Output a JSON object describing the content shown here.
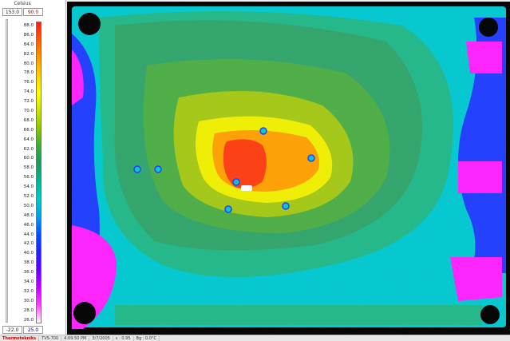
{
  "scale": {
    "unit": "Celsius",
    "range_max_left": "153.0",
    "range_max_right": "90.0",
    "range_min_left": "-22.0",
    "range_min_right": "25.0",
    "ticks": [
      "88.0",
      "86.0",
      "84.0",
      "82.0",
      "80.0",
      "78.0",
      "76.0",
      "74.0",
      "72.0",
      "70.0",
      "68.0",
      "66.0",
      "64.0",
      "62.0",
      "60.0",
      "58.0",
      "56.0",
      "54.0",
      "52.0",
      "50.0",
      "48.0",
      "46.0",
      "44.0",
      "42.0",
      "40.0",
      "38.0",
      "36.0",
      "34.0",
      "32.0",
      "30.0",
      "28.0",
      "26.0"
    ],
    "gradient_colors": [
      "#ff1a1a",
      "#ff5a00",
      "#ff9a00",
      "#ffd000",
      "#ffff00",
      "#c8e600",
      "#8cc800",
      "#3caa3c",
      "#1e965a",
      "#00b496",
      "#00c8c8",
      "#00a0e6",
      "#0050ff",
      "#2020ff",
      "#6000ff",
      "#c000ff",
      "#ff40ff",
      "#ffffff"
    ]
  },
  "thermal": {
    "palette": {
      "background_outer": "#000000",
      "cold": "#ff20ff",
      "cool_blue": "#1e3cff",
      "cyan": "#00c8d0",
      "teal": "#20b888",
      "mid_green": "#2fa56a",
      "green": "#4cae44",
      "yellow_green": "#a4c814",
      "yellow": "#f0f000",
      "orange": "#ffa000",
      "hot": "#ff3c10"
    }
  },
  "status": {
    "brand": "Thermotekniks",
    "model": "TVS-700",
    "time": "4:09:50 PM",
    "date": "3/7/2005",
    "emissivity": "ε : 0.95",
    "background": "Bg : 0.0°C"
  }
}
